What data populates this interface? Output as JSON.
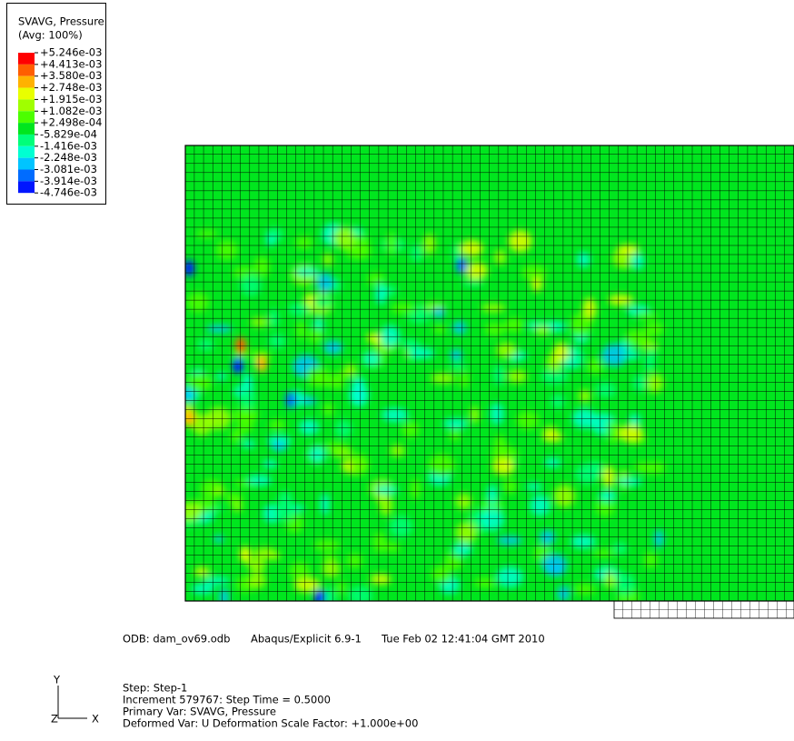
{
  "legend": {
    "title": "SVAVG, Pressure",
    "subtitle": "(Avg: 100%)",
    "levels": [
      "+5.246e-03",
      "+4.413e-03",
      "+3.580e-03",
      "+2.748e-03",
      "+1.915e-03",
      "+1.082e-03",
      "+2.498e-04",
      "-5.829e-04",
      "-1.416e-03",
      "-2.248e-03",
      "-3.081e-03",
      "-3.914e-03",
      "-4.746e-03"
    ],
    "colors": [
      "#ff0000",
      "#ff5e00",
      "#ffb200",
      "#e8ff00",
      "#a0ff00",
      "#4cff00",
      "#00e61e",
      "#00ff7a",
      "#00ffd2",
      "#00c4ff",
      "#006cff",
      "#0016ff"
    ]
  },
  "info": {
    "odb": "ODB: dam_ov69.odb",
    "version": "Abaqus/Explicit 6.9-1",
    "date": "Tue Feb 02 12:41:04 GMT 2010",
    "step": "Step: Step-1",
    "increment": "Increment    579767: Step Time =    0.5000",
    "primary": "Primary Var: SVAVG, Pressure",
    "deformed": "Deformed Var: U   Deformation Scale Factor: +1.000e+00"
  },
  "triad": {
    "y": "Y",
    "z": "Z",
    "x": "X"
  }
}
